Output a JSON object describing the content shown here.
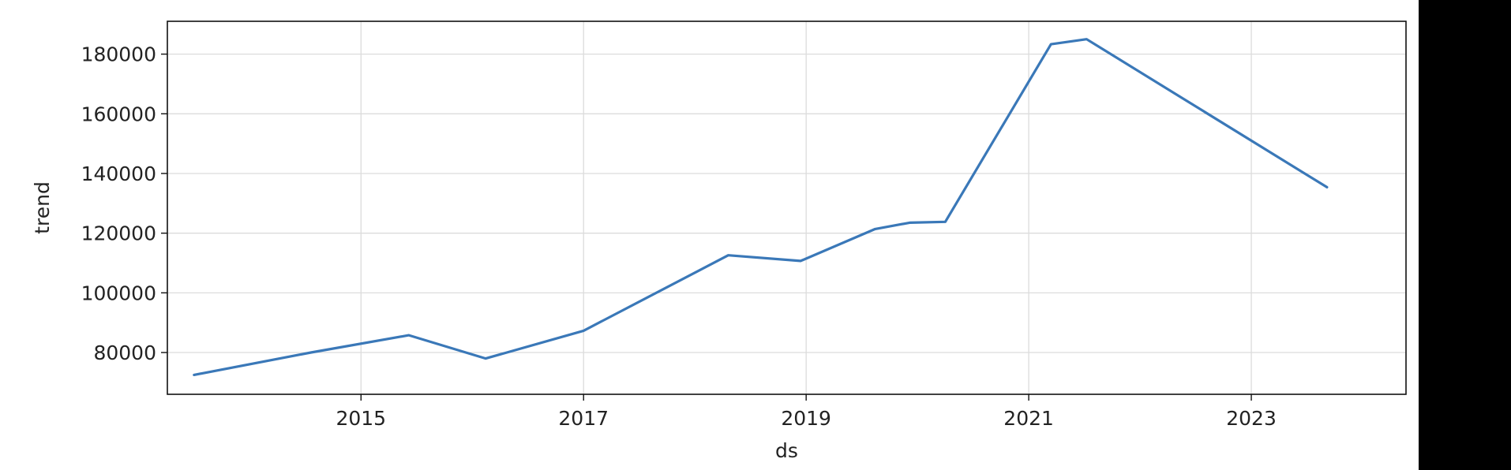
{
  "chart_data": {
    "type": "line",
    "title": "",
    "xlabel": "ds",
    "ylabel": "trend",
    "xlim": [
      2013.26,
      2024.39
    ],
    "ylim": [
      66000,
      191000
    ],
    "x_ticks": [
      2015,
      2017,
      2019,
      2021,
      2023
    ],
    "x_tick_labels": [
      "2015",
      "2017",
      "2019",
      "2021",
      "2023"
    ],
    "y_ticks": [
      80000,
      100000,
      120000,
      140000,
      160000,
      180000
    ],
    "y_tick_labels": [
      "80000",
      "100000",
      "120000",
      "140000",
      "160000",
      "180000"
    ],
    "grid": true,
    "line_color": "#3a78b8",
    "series": [
      {
        "x": [
          2013.5,
          2014.55,
          2015.43,
          2016.12,
          2017.0,
          2018.3,
          2018.95,
          2019.62,
          2019.93,
          2020.25,
          2021.2,
          2021.52,
          2023.68
        ],
        "y": [
          72500,
          80000,
          85800,
          78000,
          87300,
          112600,
          110700,
          121400,
          123500,
          123800,
          183300,
          185000,
          135400
        ]
      }
    ]
  }
}
